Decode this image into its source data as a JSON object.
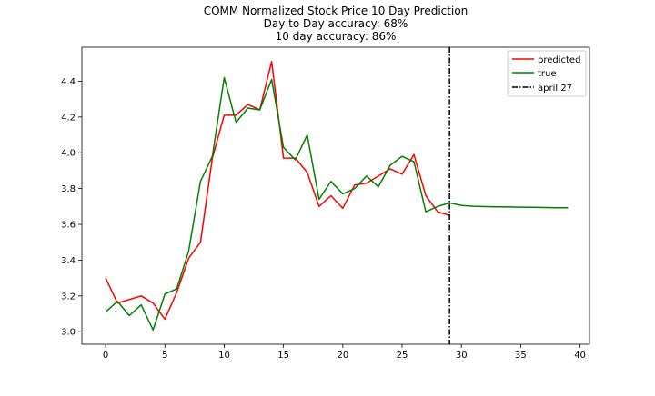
{
  "chart_data": {
    "type": "line",
    "title": [
      "COMM Normalized Stock Price 10 Day Prediction",
      "Day to Day accuracy: 68%",
      "10 day accuracy: 86%"
    ],
    "xlabel": "",
    "ylabel": "",
    "xlim": [
      -2,
      40.8
    ],
    "ylim": [
      2.93,
      4.59
    ],
    "xticks": [
      0,
      5,
      10,
      15,
      20,
      25,
      30,
      35,
      40
    ],
    "yticks": [
      3.0,
      3.2,
      3.4,
      3.6,
      3.8,
      4.0,
      4.2,
      4.4
    ],
    "ytick_labels": [
      "3.0",
      "3.2",
      "3.4",
      "3.6",
      "3.8",
      "4.0",
      "4.2",
      "4.4"
    ],
    "grid": false,
    "legend_position": "top-right",
    "series": [
      {
        "name": "predicted",
        "color": "#ff0000",
        "x": [
          0,
          1,
          2,
          3,
          4,
          5,
          6,
          7,
          8,
          9,
          10,
          11,
          12,
          13,
          14,
          15,
          16,
          17,
          18,
          19,
          20,
          21,
          22,
          23,
          24,
          25,
          26,
          27,
          28,
          29
        ],
        "y": [
          3.3,
          3.16,
          3.18,
          3.2,
          3.16,
          3.07,
          3.22,
          3.41,
          3.5,
          3.97,
          4.21,
          4.21,
          4.27,
          4.24,
          4.51,
          3.97,
          3.97,
          3.89,
          3.7,
          3.76,
          3.69,
          3.82,
          3.83,
          3.87,
          3.91,
          3.88,
          3.99,
          3.76,
          3.67,
          3.65
        ]
      },
      {
        "name": "true",
        "color": "#008000",
        "x": [
          0,
          1,
          2,
          3,
          4,
          5,
          6,
          7,
          8,
          9,
          10,
          11,
          12,
          13,
          14,
          15,
          16,
          17,
          18,
          19,
          20,
          21,
          22,
          23,
          24,
          25,
          26,
          27,
          28,
          29,
          30,
          31,
          32,
          33,
          34,
          35,
          36,
          37,
          38,
          39
        ],
        "y": [
          3.11,
          3.17,
          3.09,
          3.15,
          3.01,
          3.21,
          3.24,
          3.45,
          3.84,
          3.98,
          4.42,
          4.17,
          4.25,
          4.24,
          4.41,
          4.03,
          3.96,
          4.1,
          3.74,
          3.84,
          3.77,
          3.8,
          3.87,
          3.81,
          3.93,
          3.98,
          3.95,
          3.67,
          3.7,
          3.72,
          3.706,
          3.701,
          3.699,
          3.698,
          3.697,
          3.696,
          3.695,
          3.694,
          3.693,
          3.693
        ]
      }
    ],
    "vline": {
      "name": "april 27",
      "x": 29,
      "color": "#000000",
      "style": "dash-dot"
    }
  }
}
